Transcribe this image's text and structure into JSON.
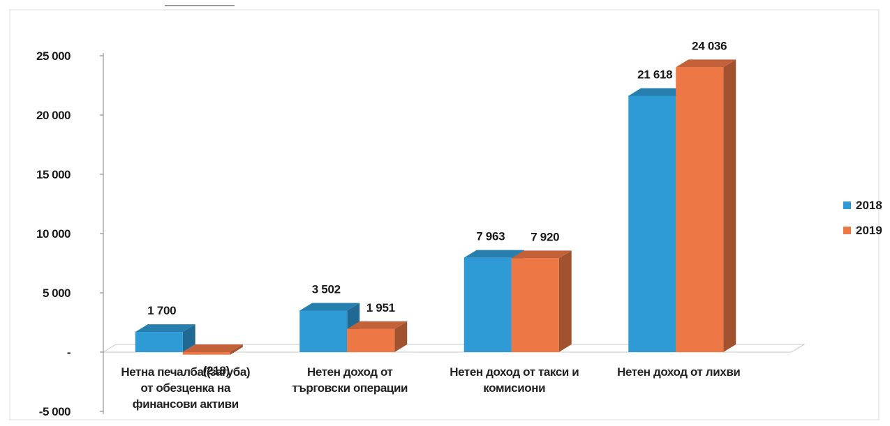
{
  "colors": {
    "series_2018": "#2e9bd6",
    "series_2019": "#ee7845",
    "grid": "#c8c8c8",
    "axis": "#7f7f7f"
  },
  "chart_data": {
    "type": "bar",
    "style": "3d-clustered-column",
    "categories": [
      "Нетна печалба/(загуба) от обезценка на финансови активи",
      "Нетен доход от търговски операции",
      "Нетен доход от такси и комисиони",
      "Нетен доход от лихви"
    ],
    "category_lines": [
      [
        "Нетна печалба/(загуба)",
        "от обезценка на",
        "финансови активи"
      ],
      [
        "Нетен доход от",
        "търговски операции"
      ],
      [
        "Нетен доход от такси и",
        "комисиони"
      ],
      [
        "Нетен доход от лихви"
      ]
    ],
    "series": [
      {
        "name": "2018",
        "values": [
          1700,
          3502,
          7963,
          21618
        ],
        "labels": [
          "1 700",
          "3 502",
          "7 963",
          "21 618"
        ]
      },
      {
        "name": "2019",
        "values": [
          -218,
          1951,
          7920,
          24036
        ],
        "labels": [
          "(218)",
          "1 951",
          "7 920",
          "24 036"
        ]
      }
    ],
    "ylim": [
      -5000,
      25000
    ],
    "yticks": [
      25000,
      20000,
      15000,
      10000,
      5000,
      0,
      -5000
    ],
    "ytick_labels": [
      "25 000",
      "20 000",
      "15 000",
      "10 000",
      "5 000",
      "-",
      "-5 000"
    ],
    "title": "",
    "xlabel": "",
    "ylabel": "",
    "grid": false,
    "legend_position": "right"
  }
}
